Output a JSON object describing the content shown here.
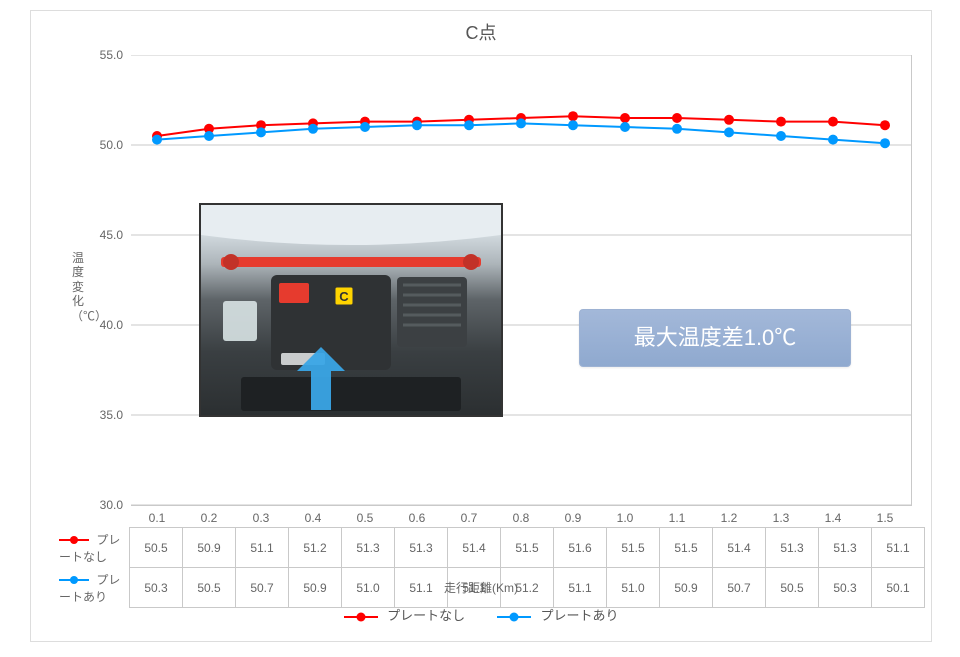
{
  "chart": {
    "type": "line-with-markers",
    "title": "C点",
    "x_title": "走行距離(Km)",
    "y_title": "温度変化（℃）",
    "background_color": "#ffffff",
    "border_color": "#dddddd",
    "grid_color": "#c9c9c9",
    "tick_label_color": "#666666",
    "tick_fontsize": 12,
    "title_fontsize": 18,
    "ylim": [
      30.0,
      55.0
    ],
    "ytick_step": 5.0,
    "yticks": [
      "30.0",
      "35.0",
      "40.0",
      "45.0",
      "50.0",
      "55.0"
    ],
    "x_categories": [
      "0.1",
      "0.2",
      "0.3",
      "0.4",
      "0.5",
      "0.6",
      "0.7",
      "0.8",
      "0.9",
      "1.0",
      "1.1",
      "1.2",
      "1.3",
      "1.4",
      "1.5"
    ],
    "series": [
      {
        "name": "プレートなし",
        "color": "#ff0000",
        "marker": "circle",
        "marker_size": 5,
        "line_width": 2,
        "values": [
          50.5,
          50.9,
          51.1,
          51.2,
          51.3,
          51.3,
          51.4,
          51.5,
          51.6,
          51.5,
          51.5,
          51.4,
          51.3,
          51.3,
          51.1
        ]
      },
      {
        "name": "プレートあり",
        "color": "#0099ff",
        "marker": "circle",
        "marker_size": 5,
        "line_width": 2,
        "values": [
          50.3,
          50.5,
          50.7,
          50.9,
          51.0,
          51.1,
          51.1,
          51.2,
          51.1,
          51.0,
          50.9,
          50.7,
          50.5,
          50.3,
          50.1
        ]
      }
    ],
    "callout": {
      "text": "最大温度差1.0℃",
      "bg_color_top": "#a3b8d9",
      "bg_color_bottom": "#8fa9cf",
      "text_color": "#ffffff",
      "fontsize": 22
    },
    "inset_image": {
      "description": "engine-bay-photo-with-point-C-marker",
      "marker_label": "C",
      "marker_bg": "#ffd400",
      "arrow_color": "#3aa5e6",
      "strut_bar_color": "#e63b2e",
      "engine_cover_color": "#2f3234"
    }
  }
}
